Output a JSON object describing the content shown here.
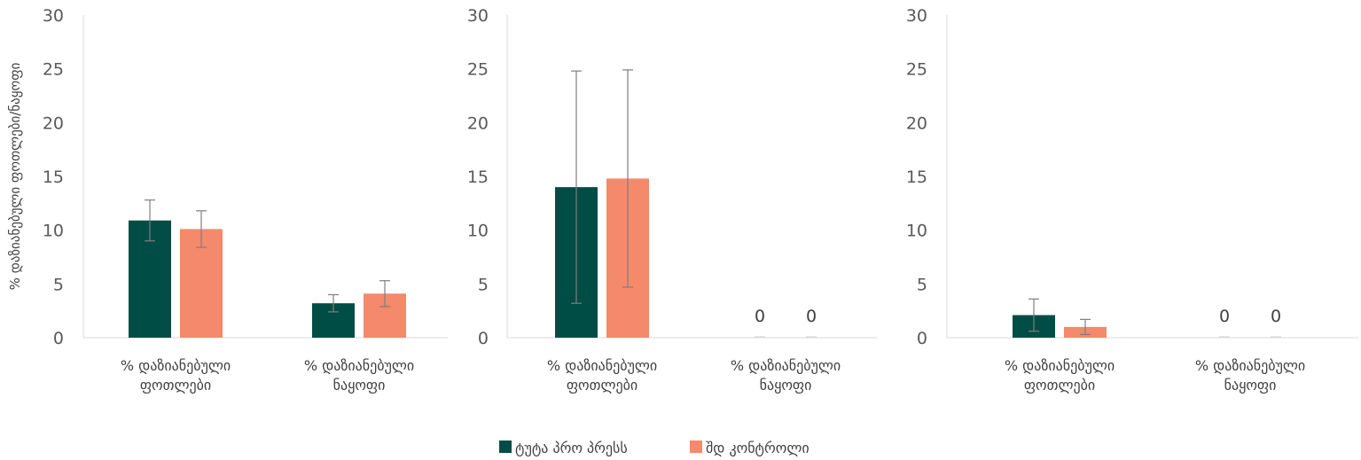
{
  "colors": {
    "series1": "#004d45",
    "series2": "#f4896b",
    "axis": "#d9d9d9",
    "error": "#7f7f7f"
  },
  "legend": {
    "position": "bottom",
    "items": [
      "ტუტა პრო პრესს",
      "შდ კონტროლი"
    ]
  },
  "chart_data": [
    {
      "type": "bar",
      "ylabel": "% დაზიანებული ფოთლები/ნაყოფი",
      "ylim": [
        0,
        30
      ],
      "yticks": [
        0,
        5,
        10,
        15,
        20,
        25,
        30
      ],
      "categories": [
        [
          "% დაზიანებული",
          "ფოთლები"
        ],
        [
          "% დაზიანებული",
          "ნაყოფი"
        ]
      ],
      "series": [
        {
          "name": "ტუტა პრო პრესს",
          "values": [
            10.9,
            3.2
          ],
          "errors": [
            1.9,
            0.8
          ]
        },
        {
          "name": "შდ კონტროლი",
          "values": [
            10.1,
            4.1
          ],
          "errors": [
            1.7,
            1.2
          ]
        }
      ],
      "data_labels": [
        [
          null,
          null
        ],
        [
          null,
          null
        ]
      ]
    },
    {
      "type": "bar",
      "ylabel": "",
      "ylim": [
        0,
        30
      ],
      "yticks": [
        0,
        5,
        10,
        15,
        20,
        25,
        30
      ],
      "categories": [
        [
          "% დაზიანებული",
          "ფოთლები"
        ],
        [
          "% დაზიანებული",
          "ნაყოფი"
        ]
      ],
      "series": [
        {
          "name": "ტუტა პრო პრესს",
          "values": [
            14.0,
            0
          ],
          "errors": [
            10.8,
            0
          ]
        },
        {
          "name": "შდ კონტროლი",
          "values": [
            14.8,
            0
          ],
          "errors": [
            10.1,
            0
          ]
        }
      ],
      "data_labels": [
        [
          null,
          "0"
        ],
        [
          null,
          "0"
        ]
      ]
    },
    {
      "type": "bar",
      "ylabel": "",
      "ylim": [
        0,
        30
      ],
      "yticks": [
        0,
        5,
        10,
        15,
        20,
        25,
        30
      ],
      "categories": [
        [
          "% დაზიანებული",
          "ფოთლები"
        ],
        [
          "% დაზიანებული",
          "ნაყოფი"
        ]
      ],
      "series": [
        {
          "name": "ტუტა პრო პრესს",
          "values": [
            2.1,
            0
          ],
          "errors": [
            1.5,
            0
          ]
        },
        {
          "name": "შდ კონტროლი",
          "values": [
            1.0,
            0
          ],
          "errors": [
            0.7,
            0
          ]
        }
      ],
      "data_labels": [
        [
          null,
          "0"
        ],
        [
          null,
          "0"
        ]
      ]
    }
  ]
}
